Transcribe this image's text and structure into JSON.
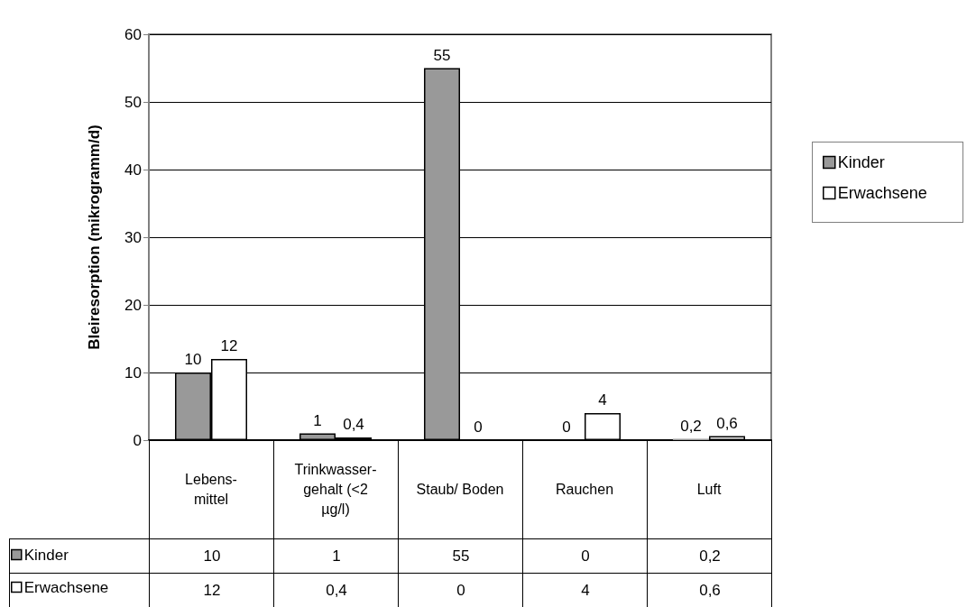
{
  "chart_data": {
    "type": "bar",
    "ylabel": "Bleiresorption (mikrogramm/d)",
    "categories": [
      "Lebens-\nmittel",
      "Trinkwasser-\ngehalt (<2\nµg/l)",
      "Staub/ Boden",
      "Rauchen",
      "Luft"
    ],
    "series": [
      {
        "name": "Kinder",
        "color": "#999999",
        "values": [
          10,
          1,
          55,
          0,
          0.2
        ],
        "value_labels": [
          "10",
          "1",
          "55",
          "0",
          "0,2"
        ]
      },
      {
        "name": "Erwachsene",
        "color": "#ffffff",
        "values": [
          12,
          0.4,
          0,
          4,
          0.6
        ],
        "value_labels": [
          "12",
          "0,4",
          "0",
          "4",
          "0,6"
        ]
      }
    ],
    "ylim": [
      0,
      60
    ],
    "yticks": [
      0,
      10,
      20,
      30,
      40,
      50,
      60
    ],
    "grid": "y",
    "legend": "right"
  }
}
